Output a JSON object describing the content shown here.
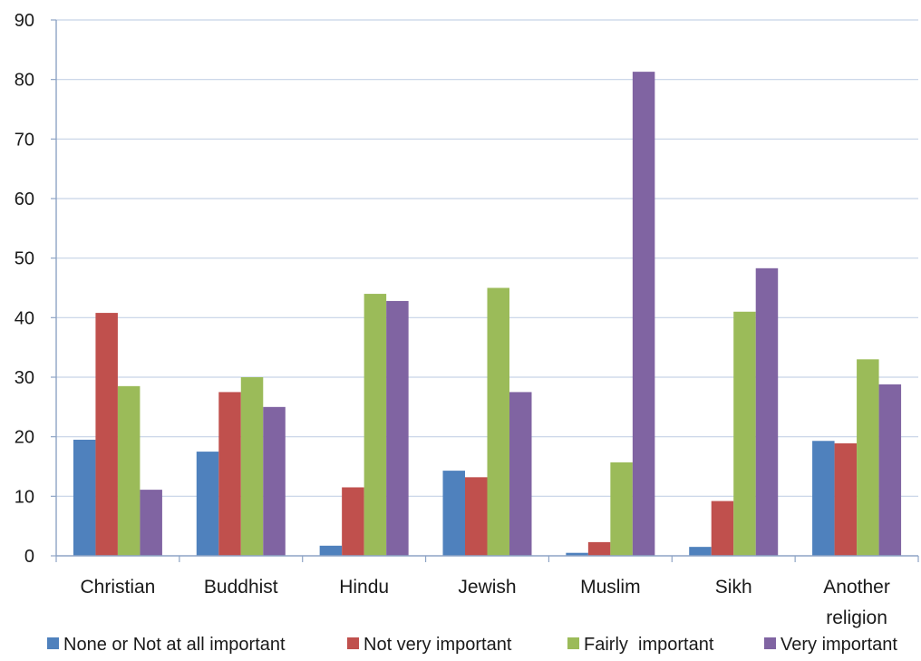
{
  "chart_data": {
    "type": "bar",
    "categories": [
      "Christian",
      "Buddhist",
      "Hindu",
      "Jewish",
      "Muslim",
      "Sikh",
      "Another religion"
    ],
    "category_lines": [
      [
        "Christian"
      ],
      [
        "Buddhist"
      ],
      [
        "Hindu"
      ],
      [
        "Jewish"
      ],
      [
        "Muslim"
      ],
      [
        "Sikh"
      ],
      [
        "Another",
        "religion"
      ]
    ],
    "series": [
      {
        "name": "None or Not at all important",
        "color": "#4f81bd",
        "values": [
          19.5,
          17.5,
          1.7,
          14.3,
          0.5,
          1.5,
          19.3
        ]
      },
      {
        "name": "Not very important",
        "color": "#c0504d",
        "values": [
          40.8,
          27.5,
          11.5,
          13.2,
          2.3,
          9.2,
          18.9
        ]
      },
      {
        "name": "Fairly  important",
        "color": "#9bbb59",
        "values": [
          28.5,
          30.0,
          44.0,
          45.0,
          15.7,
          41.0,
          33.0
        ]
      },
      {
        "name": "Very important",
        "color": "#8064a2",
        "values": [
          11.1,
          25.0,
          42.8,
          27.5,
          81.3,
          48.3,
          28.8
        ]
      }
    ],
    "yticks": [
      0,
      10,
      20,
      30,
      40,
      50,
      60,
      70,
      80,
      90
    ],
    "ylim": [
      0,
      90
    ],
    "grid": true,
    "legend_position": "bottom",
    "title": "",
    "xlabel": "",
    "ylabel": ""
  }
}
